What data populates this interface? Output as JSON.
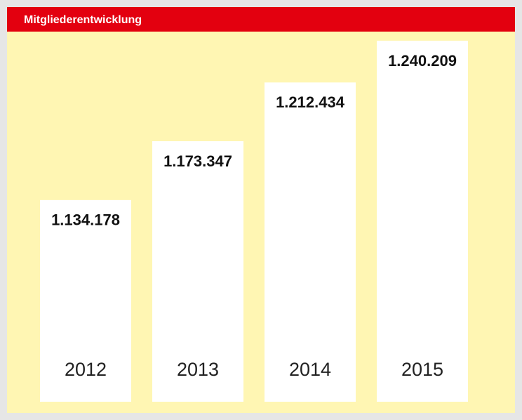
{
  "chart_data": {
    "type": "bar",
    "title": "Mitgliederentwicklung",
    "categories": [
      "2012",
      "2013",
      "2014",
      "2015"
    ],
    "values": [
      1134178,
      1173347,
      1212434,
      1240209
    ],
    "value_labels": [
      "1.134.178",
      "1.173.347",
      "1.212.434",
      "1.240.209"
    ],
    "color": "#ffffff",
    "ylim": [
      1000000,
      1250000
    ]
  }
}
